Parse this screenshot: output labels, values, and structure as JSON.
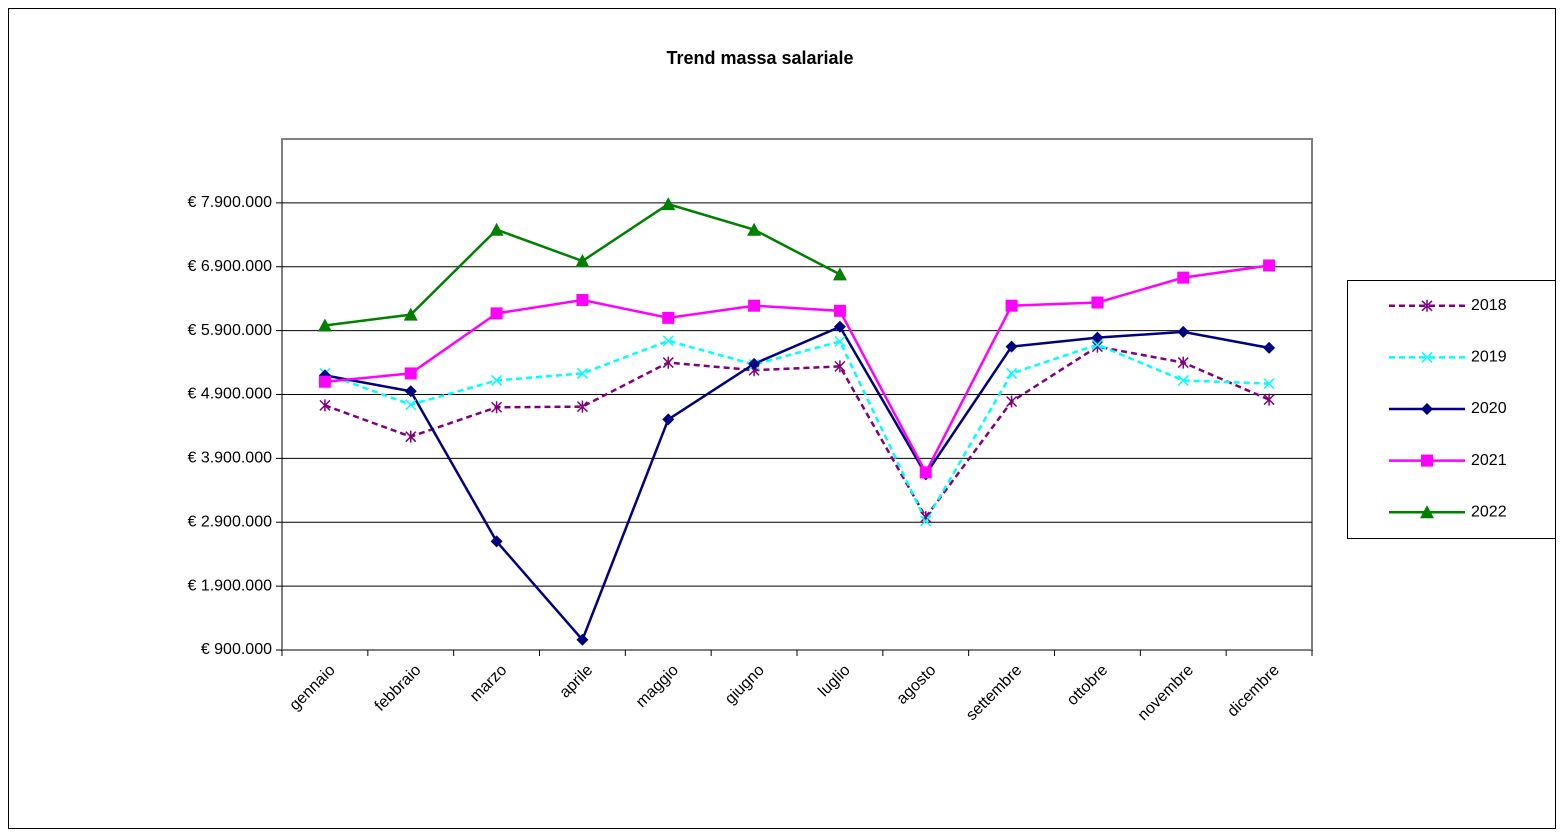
{
  "chart_data": {
    "type": "line",
    "title": "Trend massa salariale",
    "categories": [
      "gennaio",
      "febbraio",
      "marzo",
      "aprile",
      "maggio",
      "giugno",
      "luglio",
      "agosto",
      "settembre",
      "ottobre",
      "novembre",
      "dicembre"
    ],
    "series": [
      {
        "name": "2018",
        "color": "#800080",
        "dashed": true,
        "marker": "asterisk",
        "values": [
          4730000,
          4240000,
          4700000,
          4710000,
          5400000,
          5280000,
          5340000,
          2980000,
          4790000,
          5650000,
          5400000,
          4820000
        ]
      },
      {
        "name": "2019",
        "color": "#00ffff",
        "dashed": true,
        "marker": "x",
        "values": [
          5230000,
          4740000,
          5120000,
          5230000,
          5740000,
          5370000,
          5730000,
          2920000,
          5230000,
          5680000,
          5120000,
          5070000
        ]
      },
      {
        "name": "2020",
        "color": "#000080",
        "dashed": false,
        "marker": "diamond",
        "values": [
          5200000,
          4950000,
          2600000,
          1060000,
          4510000,
          5380000,
          5960000,
          3650000,
          5650000,
          5790000,
          5880000,
          5630000
        ]
      },
      {
        "name": "2021",
        "color": "#ff00ff",
        "dashed": false,
        "marker": "square",
        "values": [
          5100000,
          5230000,
          6170000,
          6380000,
          6100000,
          6290000,
          6210000,
          3680000,
          6290000,
          6340000,
          6730000,
          6920000
        ]
      },
      {
        "name": "2022",
        "color": "#008000",
        "dashed": false,
        "marker": "triangle",
        "values": [
          5980000,
          6150000,
          7480000,
          6990000,
          7880000,
          7480000,
          6780000,
          null,
          null,
          null,
          null,
          null
        ]
      }
    ],
    "ylim": [
      900000,
      8900000
    ],
    "yticks": [
      {
        "value": 900000,
        "label": "€ 900.000"
      },
      {
        "value": 1900000,
        "label": "€ 1.900.000"
      },
      {
        "value": 2900000,
        "label": "€ 2.900.000"
      },
      {
        "value": 3900000,
        "label": "€ 3.900.000"
      },
      {
        "value": 4900000,
        "label": "€ 4.900.000"
      },
      {
        "value": 5900000,
        "label": "€ 5.900.000"
      },
      {
        "value": 6900000,
        "label": "€ 6.900.000"
      },
      {
        "value": 7900000,
        "label": "€ 7.900.000"
      }
    ],
    "grid": true,
    "legend": "right"
  }
}
